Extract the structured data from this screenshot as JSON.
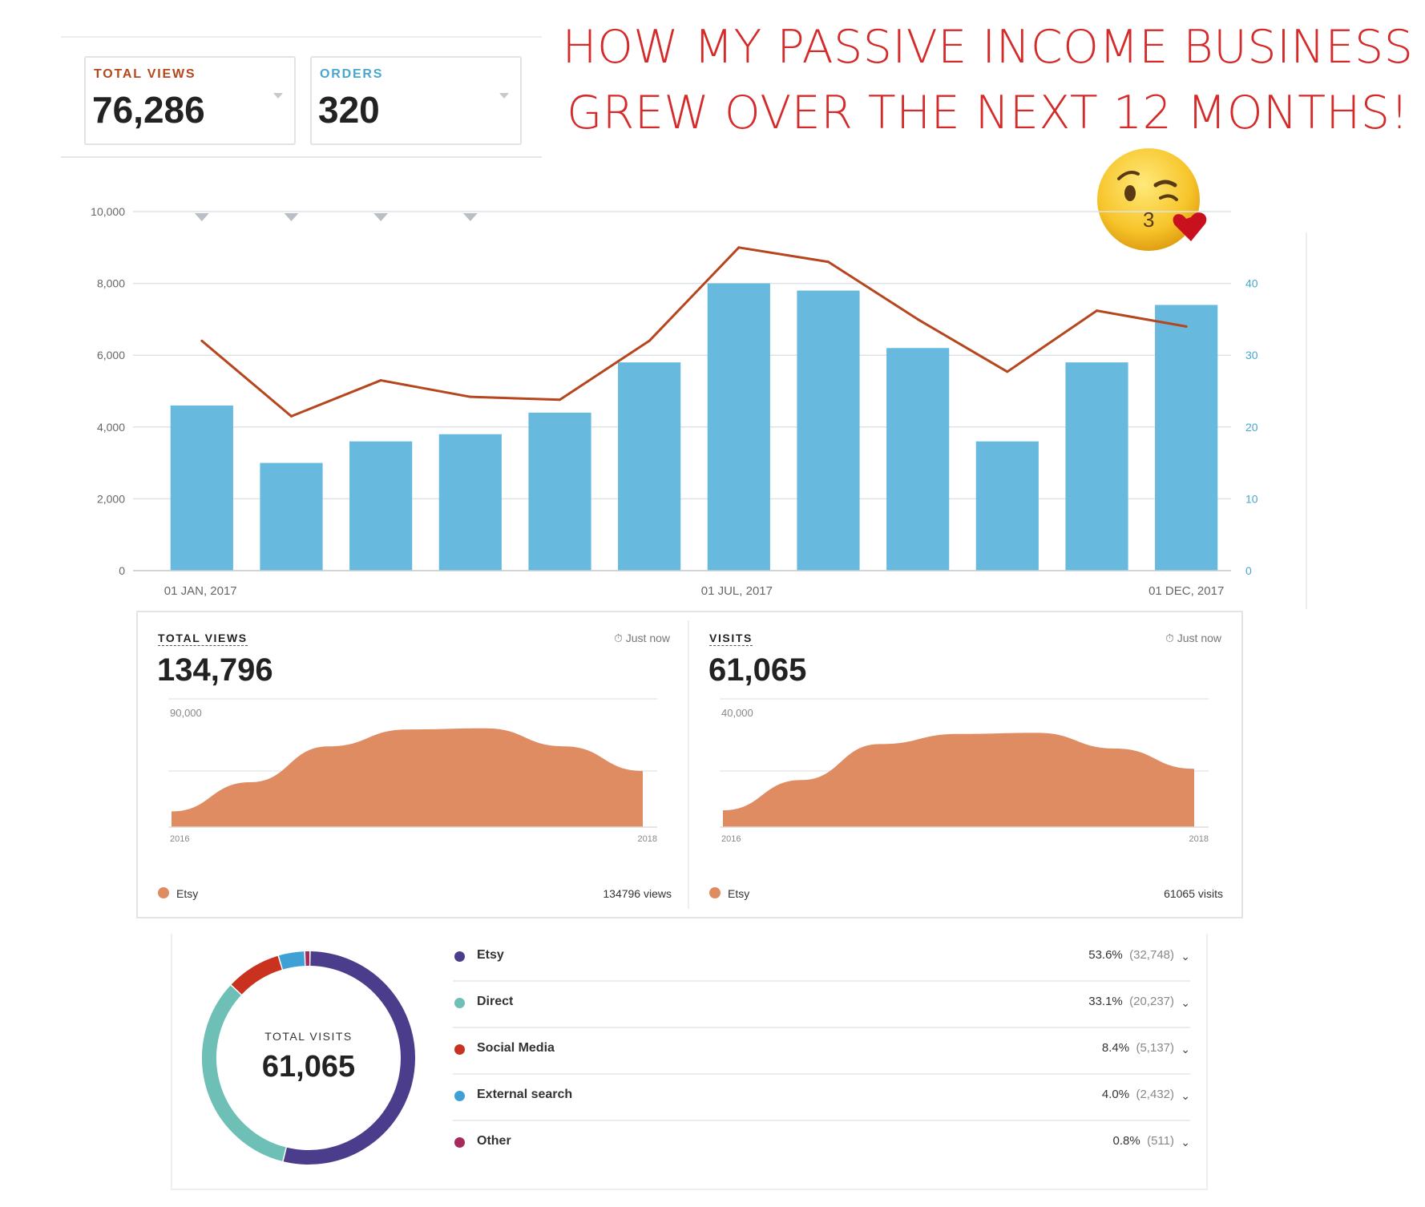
{
  "headline": {
    "line1": "HOW MY PASSIVE INCOME BUSINESS",
    "line2": "GREW OVER THE NEXT 12 MONTHS!"
  },
  "emoji": {
    "icon": "kissing-face-heart-icon"
  },
  "colors": {
    "headline": "#d42a2a",
    "bar": "#67b9de",
    "line": "#b5461d",
    "area": "#e08c62",
    "views_label": "#b5461d",
    "orders_label": "#49a7cf",
    "etsy": "#4b3c8c",
    "direct": "#6ebfb5",
    "social": "#c9321f",
    "external": "#3ea0d4",
    "other": "#a62a5b"
  },
  "stats": {
    "views": {
      "label": "TOTAL VIEWS",
      "value": "76,286"
    },
    "orders": {
      "label": "ORDERS",
      "value": "320"
    }
  },
  "chart_data": [
    {
      "type": "bar",
      "categories": [
        "01 JAN, 2017",
        "",
        "",
        "",
        "",
        "",
        "01 JUL, 2017",
        "",
        "",
        "",
        "",
        "01 DEC, 2017"
      ],
      "series": [
        {
          "values": [
            4600,
            3000,
            3600,
            3800,
            4400,
            5800,
            8000,
            7800,
            6200,
            3600,
            5800,
            7400
          ]
        },
        {
          "type": "line",
          "axis": "right",
          "values": [
            32,
            21.5,
            26.5,
            24.2,
            23.8,
            32,
            45,
            43,
            35,
            27.7,
            36.2,
            34
          ]
        }
      ],
      "y_ticks": [
        "0",
        "2,000",
        "4,000",
        "6,000",
        "8,000",
        "10,000"
      ],
      "y2_ticks": [
        "0",
        "10",
        "20",
        "30",
        "40"
      ],
      "ylim": [
        0,
        10000
      ],
      "y2lim": [
        0,
        40
      ],
      "x_tick_labels": [
        "01 JAN, 2017",
        "01 JUL, 2017",
        "01 DEC, 2017"
      ],
      "grid": true
    },
    {
      "type": "area",
      "label": "TOTAL VIEWS",
      "total": "134,796",
      "updated": "Just now",
      "y_tick": "90,000",
      "x_tick_labels": [
        "2016",
        "2018"
      ],
      "series": [
        {
          "name": "Etsy",
          "values": [
            0.14,
            0.4,
            0.72,
            0.87,
            0.88,
            0.72,
            0.5
          ]
        }
      ],
      "legend": "Etsy",
      "legend_value": "134796 views"
    },
    {
      "type": "area",
      "label": "VISITS",
      "total": "61,065",
      "updated": "Just now",
      "y_tick": "40,000",
      "x_tick_labels": [
        "2016",
        "2018"
      ],
      "series": [
        {
          "name": "Etsy",
          "values": [
            0.15,
            0.42,
            0.74,
            0.83,
            0.84,
            0.7,
            0.52
          ]
        }
      ],
      "legend": "Etsy",
      "legend_value": "61065 visits"
    },
    {
      "type": "pie",
      "center_label": "TOTAL VISITS",
      "center_value": "61,065",
      "slices": [
        {
          "name": "Etsy",
          "percent": 53.6,
          "pct_text": "53.6%",
          "count": "(32,748)"
        },
        {
          "name": "Direct",
          "percent": 33.1,
          "pct_text": "33.1%",
          "count": "(20,237)"
        },
        {
          "name": "Social Media",
          "percent": 8.4,
          "pct_text": "8.4%",
          "count": "(5,137)"
        },
        {
          "name": "External search",
          "percent": 4.0,
          "pct_text": "4.0%",
          "count": "(2,432)"
        },
        {
          "name": "Other",
          "percent": 0.8,
          "pct_text": "0.8%",
          "count": "(511)"
        }
      ]
    }
  ]
}
